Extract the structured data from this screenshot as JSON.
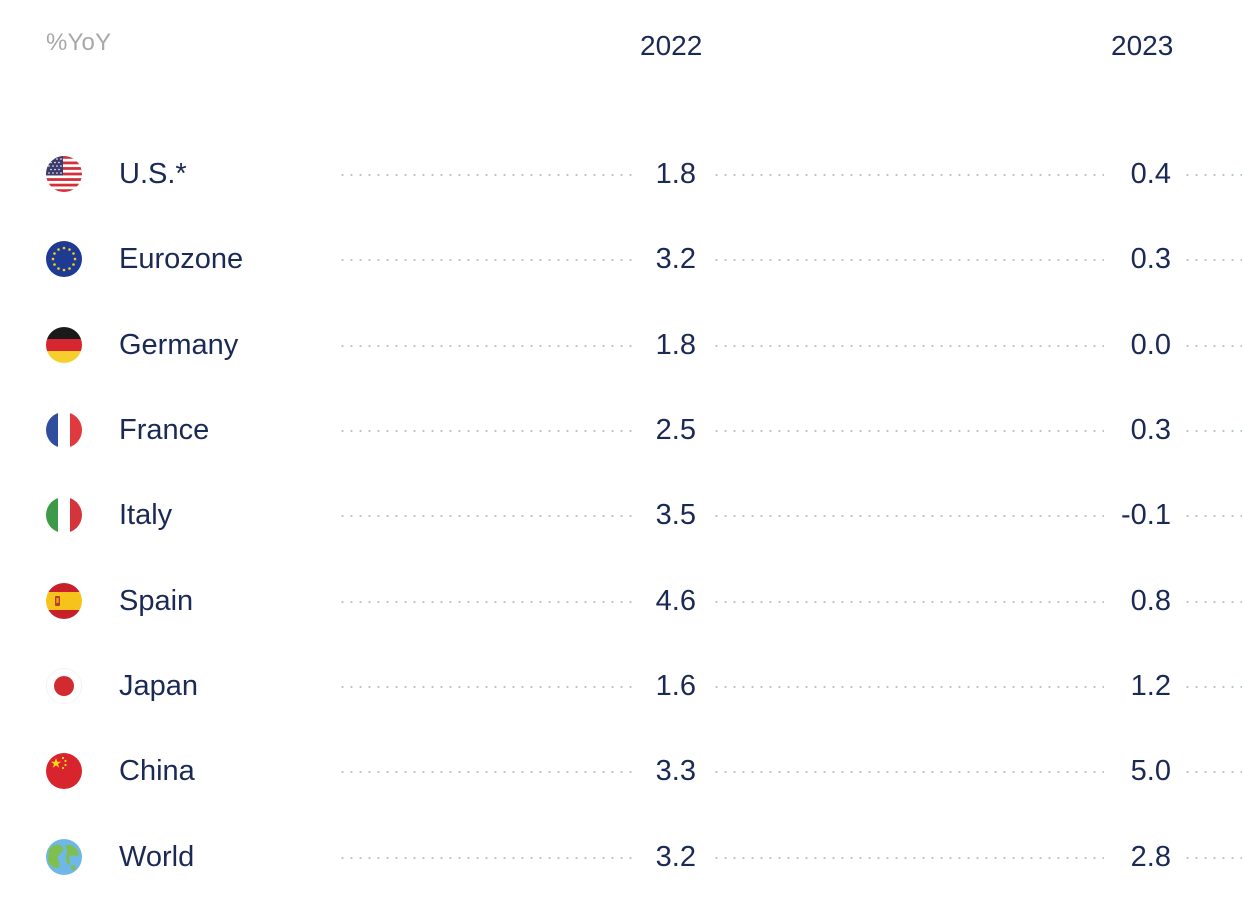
{
  "chart_data": {
    "type": "table",
    "unit_label": "%YoY",
    "columns": [
      "2022",
      "2023"
    ],
    "rows": [
      {
        "country": "U.S.*",
        "icon": "us-flag-icon",
        "v2022": "1.8",
        "v2023": "0.4"
      },
      {
        "country": "Eurozone",
        "icon": "eu-flag-icon",
        "v2022": "3.2",
        "v2023": "0.3"
      },
      {
        "country": "Germany",
        "icon": "germany-flag-icon",
        "v2022": "1.8",
        "v2023": "0.0"
      },
      {
        "country": "France",
        "icon": "france-flag-icon",
        "v2022": "2.5",
        "v2023": "0.3"
      },
      {
        "country": "Italy",
        "icon": "italy-flag-icon",
        "v2022": "3.5",
        "v2023": "-0.1"
      },
      {
        "country": "Spain",
        "icon": "spain-flag-icon",
        "v2022": "4.6",
        "v2023": "0.8"
      },
      {
        "country": "Japan",
        "icon": "japan-flag-icon",
        "v2022": "1.6",
        "v2023": "1.2"
      },
      {
        "country": "China",
        "icon": "china-flag-icon",
        "v2022": "3.3",
        "v2023": "5.0"
      },
      {
        "country": "World",
        "icon": "globe-icon",
        "v2022": "3.2",
        "v2023": "2.8"
      }
    ]
  }
}
